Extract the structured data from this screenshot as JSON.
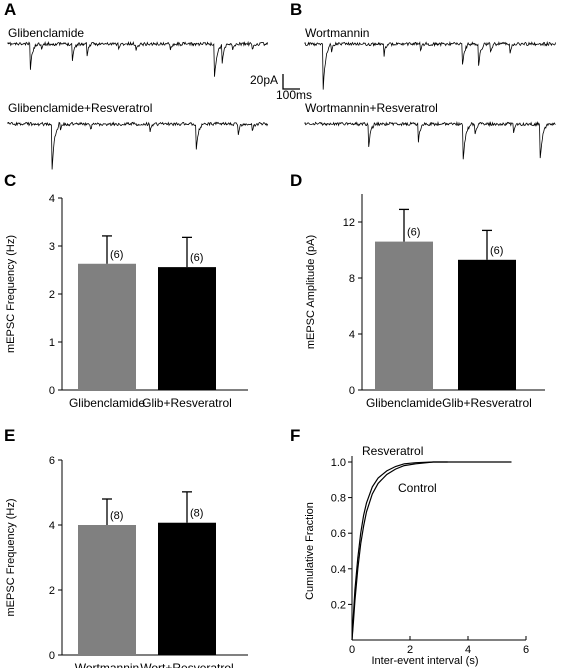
{
  "panels": {
    "A": {
      "label": "A",
      "trace1_label": "Glibenclamide",
      "trace2_label": "Glibenclamide+Resveratrol"
    },
    "B": {
      "label": "B",
      "trace1_label": "Wortmannin",
      "trace2_label": "Wortmannin+Resveratrol"
    },
    "C": {
      "label": "C"
    },
    "D": {
      "label": "D"
    },
    "E": {
      "label": "E"
    },
    "F": {
      "label": "F"
    }
  },
  "scale_bar": {
    "amplitude_label": "20pA",
    "time_label": "100ms"
  },
  "colors": {
    "gray_bar": "#808080",
    "black_bar": "#000000",
    "trace": "#000000"
  },
  "chart_data": [
    {
      "id": "C",
      "type": "bar",
      "categories": [
        "Glibenclamide",
        "Glib+Resveratrol"
      ],
      "values": [
        2.63,
        2.56
      ],
      "errors": [
        0.58,
        0.62
      ],
      "n_labels": [
        "(6)",
        "(6)"
      ],
      "bar_colors": [
        "#808080",
        "#000000"
      ],
      "ylabel": "mEPSC Frequency (Hz)",
      "ylim": [
        0,
        4
      ],
      "yticks": [
        "0",
        "1",
        "2",
        "3",
        "4"
      ]
    },
    {
      "id": "D",
      "type": "bar",
      "categories": [
        "Glibenclamide",
        "Glib+Resveratrol"
      ],
      "values": [
        10.6,
        9.3
      ],
      "errors": [
        2.3,
        2.1
      ],
      "n_labels": [
        "(6)",
        "(6)"
      ],
      "bar_colors": [
        "#808080",
        "#000000"
      ],
      "ylabel": "mEPSC Amplitude (pA)",
      "ylim": [
        0,
        14
      ],
      "yticks": [
        "0",
        "4",
        "8",
        "12"
      ]
    },
    {
      "id": "E",
      "type": "bar",
      "categories": [
        "Wortmannin",
        "Wort+Resveratrol"
      ],
      "values": [
        4.0,
        4.07
      ],
      "errors": [
        0.8,
        0.95
      ],
      "n_labels": [
        "(8)",
        "(8)"
      ],
      "bar_colors": [
        "#808080",
        "#000000"
      ],
      "ylabel": "mEPSC Frequency (Hz)",
      "ylim": [
        0,
        6
      ],
      "yticks": [
        "0",
        "2",
        "4",
        "6"
      ]
    },
    {
      "id": "F",
      "type": "line",
      "xlabel": "Inter-event interval (s)",
      "ylabel": "Cumulative Fraction",
      "xlim": [
        0,
        6
      ],
      "ylim": [
        0,
        1
      ],
      "xticks": [
        "0",
        "2",
        "4",
        "6"
      ],
      "yticks": [
        "0.2",
        "0.4",
        "0.6",
        "0.8",
        "1.0"
      ],
      "series": [
        {
          "name": "Resveratrol",
          "x": [
            0,
            0.05,
            0.1,
            0.2,
            0.3,
            0.4,
            0.5,
            0.7,
            0.9,
            1.2,
            1.5,
            1.8,
            2.2,
            2.8,
            3.3,
            5.5
          ],
          "y": [
            0,
            0.14,
            0.28,
            0.46,
            0.6,
            0.7,
            0.77,
            0.86,
            0.91,
            0.95,
            0.975,
            0.99,
            0.996,
            1.0,
            1.0,
            1.0
          ]
        },
        {
          "name": "Control",
          "x": [
            0,
            0.05,
            0.1,
            0.2,
            0.3,
            0.4,
            0.5,
            0.7,
            0.9,
            1.2,
            1.5,
            1.8,
            2.2,
            2.8,
            3.3
          ],
          "y": [
            0,
            0.1,
            0.22,
            0.4,
            0.54,
            0.64,
            0.72,
            0.82,
            0.88,
            0.93,
            0.96,
            0.98,
            0.99,
            1.0,
            1.0
          ]
        }
      ]
    }
  ]
}
